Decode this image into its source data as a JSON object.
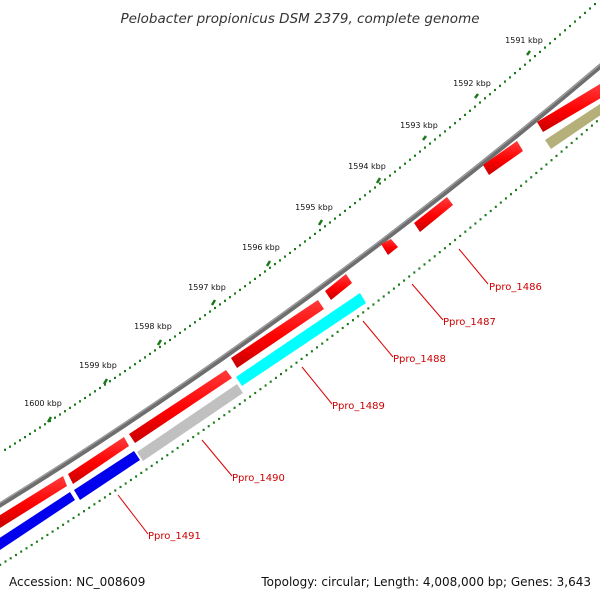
{
  "title": "Pelobacter propionicus DSM 2379, complete genome",
  "ticks": [
    "1591 kbp",
    "1592 kbp",
    "1593 kbp",
    "1594 kbp",
    "1595 kbp",
    "1596 kbp",
    "1597 kbp",
    "1598 kbp",
    "1599 kbp",
    "1600 kbp"
  ],
  "genes": [
    "Ppro_1486",
    "Ppro_1487",
    "Ppro_1488",
    "Ppro_1489",
    "Ppro_1490",
    "Ppro_1491"
  ],
  "footer": {
    "accession": "Accession: NC_008609",
    "summary": "Topology: circular; Length: 4,008,000 bp; Genes: 3,643"
  },
  "colors": {
    "backbone": "#7a7a7a",
    "forward_gene": "#ff0000",
    "reverse_gene_cyan": "#00ffff",
    "reverse_gene_gray": "#c0c0c0",
    "reverse_gene_blue": "#0000ee",
    "reverse_gene_olive": "#b5b07a",
    "tick_marks": "#1a7a1a",
    "label_lines": "#dd0000"
  }
}
